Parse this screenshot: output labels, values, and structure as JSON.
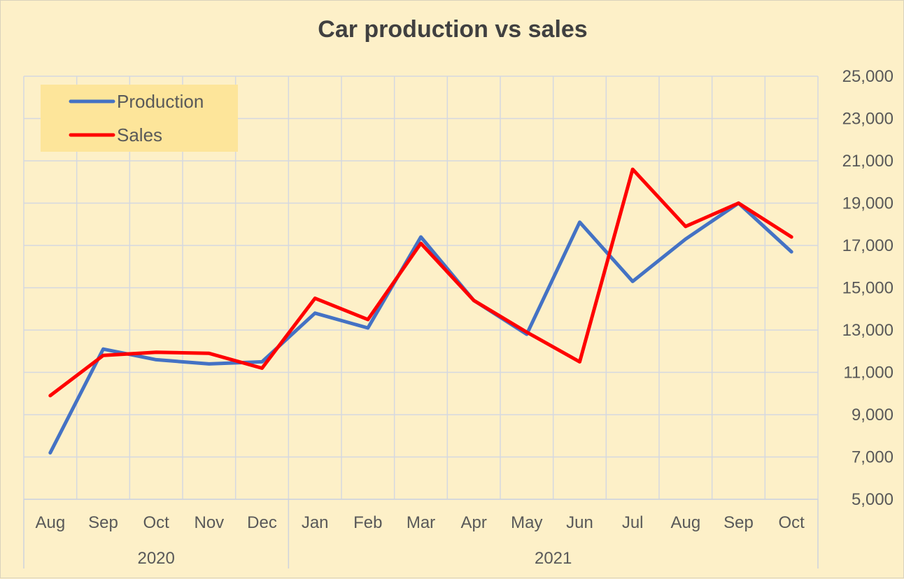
{
  "chart_data": {
    "type": "line",
    "title": "Car production vs sales",
    "categories": [
      "Aug",
      "Sep",
      "Oct",
      "Nov",
      "Dec",
      "Jan",
      "Feb",
      "Mar",
      "Apr",
      "May",
      "Jun",
      "Jul",
      "Aug",
      "Sep",
      "Oct"
    ],
    "category_groups": [
      {
        "label": "2020",
        "count": 5
      },
      {
        "label": "2021",
        "count": 10
      }
    ],
    "series": [
      {
        "name": "Production",
        "color": "#4472c4",
        "values": [
          7200,
          12100,
          11600,
          11400,
          11500,
          13800,
          13100,
          17400,
          14400,
          12800,
          18100,
          15300,
          17300,
          19000,
          16700
        ]
      },
      {
        "name": "Sales",
        "color": "#ff0000",
        "values": [
          9900,
          11800,
          11950,
          11900,
          11200,
          14500,
          13500,
          17100,
          14400,
          12900,
          11500,
          20600,
          17900,
          19000,
          17400
        ]
      }
    ],
    "ylim": [
      5000,
      25000
    ],
    "y_ticks": [
      5000,
      7000,
      9000,
      11000,
      13000,
      15000,
      17000,
      19000,
      21000,
      23000,
      25000
    ],
    "y_tick_labels": [
      "5,000",
      "7,000",
      "9,000",
      "11,000",
      "13,000",
      "15,000",
      "17,000",
      "19,000",
      "21,000",
      "23,000",
      "25,000"
    ],
    "y_axis_side": "right",
    "grid": true,
    "legend_position": "top-left",
    "colors": {
      "background": "#fdf0c8",
      "legend_background": "#fde59a",
      "grid": "#d5d8e0"
    }
  }
}
